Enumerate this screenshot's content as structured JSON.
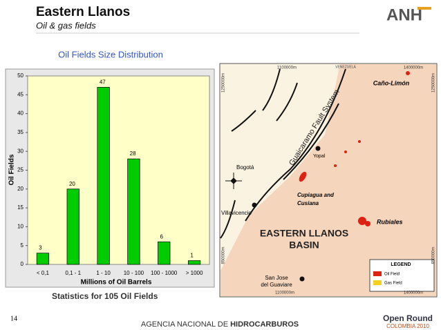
{
  "header": {
    "title": "Eastern Llanos",
    "subtitle": "Oil & gas fields",
    "logo": "ANH"
  },
  "chart_data": {
    "type": "bar",
    "title": "Oil Fields Size Distribution",
    "x_label": "Millions of Oil Barrels",
    "y_label": "Oil Fields",
    "categories": [
      "< 0,1",
      "0,1 - 1",
      "1 - 10",
      "10 - 100",
      "100 - 1000",
      "> 1000"
    ],
    "values": [
      3,
      20,
      47,
      28,
      6,
      1
    ],
    "color": "#00cc00",
    "ylim": [
      0,
      50
    ],
    "yticks": [
      0,
      5,
      10,
      15,
      20,
      25,
      30,
      35,
      40,
      45,
      50
    ],
    "caption": "Statistics for 105 Oil Fields"
  },
  "map": {
    "coords_top": [
      "1100000m",
      "1400000m"
    ],
    "coords_bottom": [
      "1100000m",
      "1400000m"
    ],
    "coords_left": [
      "1250000m",
      "850000m"
    ],
    "coords_right": [
      "1250000m",
      "850000m"
    ],
    "country": "VENEZUELA",
    "fault": "Guaicaramo Fault System",
    "places": [
      "Caño-Limón",
      "Yopal",
      "Bogotá",
      "Villavicencio",
      "Rubiales"
    ],
    "cupiagua": [
      "Cupiagua and",
      "Cusiana"
    ],
    "basin": [
      "EASTERN LLANOS",
      "BASIN"
    ],
    "san_jose": [
      "San Jose",
      "del Guaviare"
    ],
    "legend": {
      "title": "LEGEND",
      "items": [
        "Oil Field",
        "Gas Field"
      ]
    }
  },
  "footer": {
    "page": "14",
    "agency_prefix": "AGENCIA NACIONAL DE ",
    "agency_bold": "HIDROCARBUROS",
    "brand": "Open Round",
    "brand_sub": "COLOMBIA 2010"
  }
}
